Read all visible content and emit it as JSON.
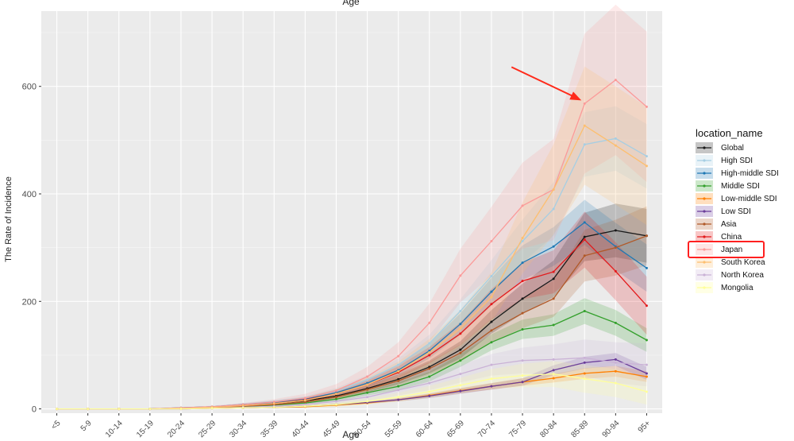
{
  "chart_data": {
    "type": "line",
    "title": "Age",
    "xlabel": "Age",
    "ylabel": "The Rate of Incidence",
    "ylim": [
      -8,
      740
    ],
    "yticks": [
      0,
      200,
      400,
      600
    ],
    "categories": [
      "<5",
      "5-9",
      "10-14",
      "15-19",
      "20-24",
      "25-29",
      "30-34",
      "35-39",
      "40-44",
      "45-49",
      "50-54",
      "55-59",
      "60-64",
      "65-69",
      "70-74",
      "75-79",
      "80-84",
      "85-89",
      "90-94",
      "95+"
    ],
    "legend_title": "location_name",
    "legend_position": "right",
    "grid": true,
    "series": [
      {
        "name": "Global",
        "color": "#1a1a1a",
        "values": [
          0,
          0,
          0,
          0,
          1,
          3,
          7,
          10,
          15,
          24,
          38,
          55,
          78,
          110,
          162,
          205,
          242,
          320,
          332,
          322
        ],
        "ci": [
          0,
          0,
          0,
          0,
          1,
          1,
          2,
          3,
          4,
          5,
          7,
          9,
          12,
          16,
          22,
          28,
          34,
          45,
          50,
          50
        ]
      },
      {
        "name": "High SDI",
        "color": "#a6cee3",
        "values": [
          0,
          0,
          0,
          0,
          2,
          4,
          8,
          13,
          20,
          33,
          54,
          82,
          122,
          182,
          247,
          312,
          372,
          492,
          503,
          470
        ],
        "ci": [
          0,
          0,
          0,
          0,
          1,
          1,
          2,
          3,
          4,
          6,
          9,
          12,
          16,
          22,
          30,
          40,
          50,
          60,
          60,
          60
        ]
      },
      {
        "name": "High-middle SDI",
        "color": "#1f78b4",
        "values": [
          0,
          0,
          0,
          0,
          2,
          4,
          8,
          12,
          18,
          30,
          48,
          72,
          108,
          158,
          218,
          272,
          302,
          347,
          302,
          262
        ],
        "ci": [
          0,
          0,
          0,
          0,
          1,
          1,
          2,
          3,
          4,
          6,
          8,
          10,
          14,
          20,
          26,
          32,
          36,
          42,
          44,
          44
        ]
      },
      {
        "name": "Middle SDI",
        "color": "#33a02c",
        "values": [
          0,
          0,
          0,
          0,
          1,
          2,
          4,
          7,
          11,
          18,
          30,
          42,
          60,
          90,
          124,
          148,
          156,
          182,
          160,
          128
        ],
        "ci": [
          0,
          0,
          0,
          0,
          1,
          1,
          1,
          2,
          3,
          4,
          5,
          7,
          9,
          12,
          15,
          18,
          20,
          24,
          24,
          22
        ]
      },
      {
        "name": "Low-middle SDI",
        "color": "#ff7f00",
        "values": [
          0,
          0,
          0,
          0,
          0,
          1,
          2,
          3,
          4,
          7,
          11,
          17,
          25,
          34,
          42,
          50,
          57,
          66,
          70,
          60
        ],
        "ci": [
          0,
          0,
          0,
          0,
          0,
          0,
          1,
          1,
          1,
          2,
          2,
          3,
          4,
          5,
          6,
          7,
          8,
          10,
          10,
          10
        ]
      },
      {
        "name": "Low SDI",
        "color": "#6a3d9a",
        "values": [
          0,
          0,
          0,
          0,
          0,
          1,
          2,
          3,
          5,
          8,
          12,
          17,
          24,
          33,
          42,
          50,
          72,
          86,
          92,
          66
        ],
        "ci": [
          0,
          0,
          0,
          0,
          0,
          0,
          1,
          1,
          1,
          2,
          2,
          3,
          4,
          5,
          6,
          7,
          9,
          11,
          12,
          12
        ]
      },
      {
        "name": "Asia",
        "color": "#b15928",
        "values": [
          0,
          0,
          0,
          0,
          1,
          2,
          5,
          8,
          13,
          22,
          36,
          52,
          75,
          104,
          146,
          178,
          205,
          285,
          300,
          322
        ],
        "ci": [
          0,
          0,
          0,
          0,
          1,
          1,
          2,
          3,
          4,
          5,
          7,
          9,
          12,
          16,
          22,
          28,
          34,
          48,
          52,
          55
        ]
      },
      {
        "name": "China",
        "color": "#e31a1c",
        "values": [
          0,
          0,
          0,
          0,
          1,
          3,
          6,
          10,
          17,
          28,
          45,
          68,
          100,
          140,
          195,
          238,
          255,
          315,
          256,
          192
        ],
        "ci": [
          0,
          0,
          0,
          0,
          1,
          1,
          2,
          3,
          4,
          6,
          8,
          11,
          15,
          21,
          28,
          34,
          40,
          52,
          54,
          54
        ]
      },
      {
        "name": "Japan",
        "color": "#fb9a99",
        "values": [
          0,
          0,
          0,
          0,
          2,
          4,
          8,
          13,
          20,
          34,
          60,
          98,
          160,
          248,
          312,
          378,
          408,
          568,
          612,
          562
        ],
        "ci": [
          0,
          0,
          0,
          0,
          1,
          2,
          3,
          5,
          8,
          12,
          18,
          26,
          36,
          50,
          64,
          80,
          94,
          130,
          140,
          140
        ]
      },
      {
        "name": "South Korea",
        "color": "#fdbf6f",
        "values": [
          0,
          0,
          0,
          0,
          1,
          3,
          6,
          10,
          16,
          28,
          45,
          70,
          105,
          150,
          208,
          318,
          408,
          527,
          490,
          452
        ],
        "ci": [
          0,
          0,
          0,
          0,
          1,
          1,
          2,
          4,
          6,
          9,
          13,
          18,
          25,
          34,
          46,
          66,
          84,
          110,
          110,
          110
        ]
      },
      {
        "name": "North Korea",
        "color": "#cab2d6",
        "values": [
          0,
          0,
          0,
          0,
          0,
          1,
          3,
          5,
          8,
          14,
          22,
          35,
          48,
          65,
          82,
          90,
          92,
          95,
          86,
          82
        ],
        "ci": [
          0,
          0,
          0,
          0,
          0,
          1,
          2,
          3,
          4,
          6,
          8,
          10,
          13,
          16,
          20,
          24,
          28,
          34,
          38,
          40
        ]
      },
      {
        "name": "Mongolia",
        "color": "#ffff99",
        "values": [
          0,
          0,
          0,
          0,
          0,
          1,
          2,
          3,
          5,
          8,
          14,
          22,
          32,
          44,
          56,
          62,
          65,
          56,
          48,
          32
        ],
        "ci": [
          0,
          0,
          0,
          0,
          0,
          1,
          1,
          2,
          3,
          4,
          6,
          8,
          11,
          14,
          18,
          22,
          24,
          26,
          26,
          24
        ]
      }
    ],
    "annotations": [
      {
        "type": "arrow",
        "target": "Japan",
        "at_category": "85-89"
      },
      {
        "type": "box",
        "target_legend": "Japan",
        "color": "#ff2020"
      }
    ]
  }
}
